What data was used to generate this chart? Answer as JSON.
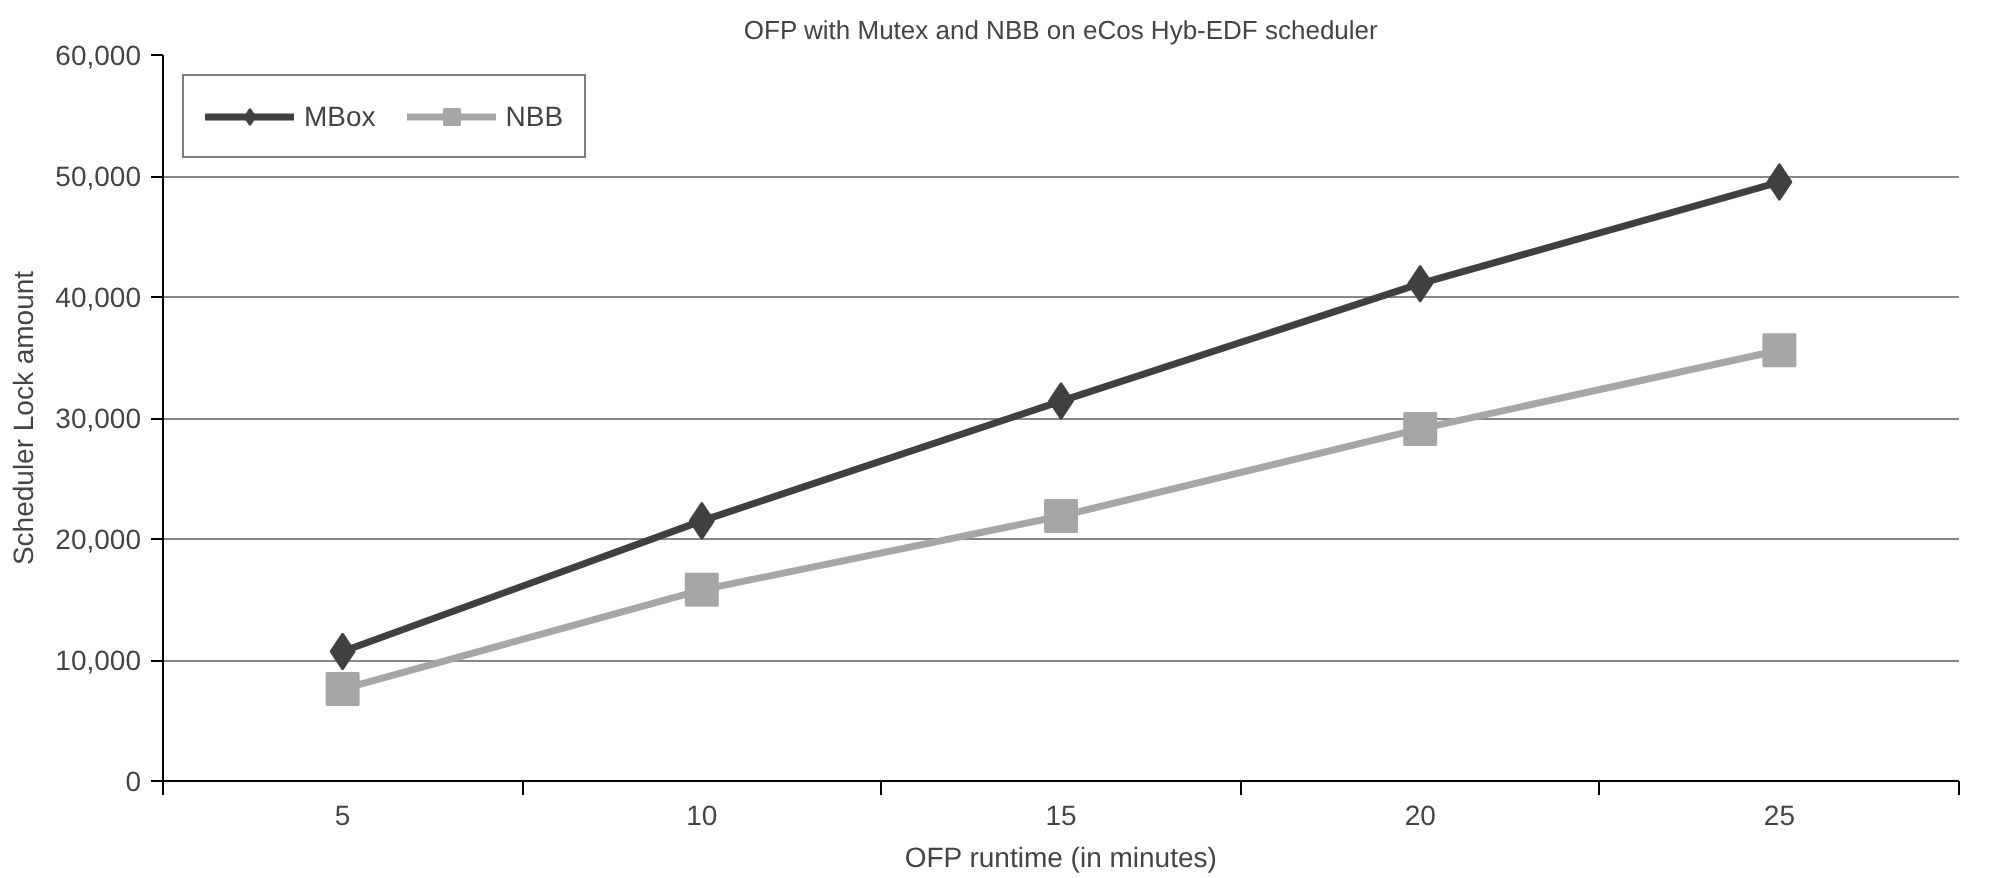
{
  "chart_data": {
    "type": "line",
    "title": "OFP with Mutex and NBB on eCos Hyb-EDF scheduler",
    "xlabel": "OFP runtime (in minutes)",
    "ylabel": "Scheduler Lock amount",
    "categories": [
      "5",
      "10",
      "15",
      "20",
      "25"
    ],
    "series": [
      {
        "name": "MBox",
        "color": "#404040",
        "marker": "diamond",
        "values": [
          10700,
          21500,
          31400,
          41100,
          49500
        ]
      },
      {
        "name": "NBB",
        "color": "#a6a6a6",
        "marker": "square",
        "values": [
          7600,
          15800,
          21900,
          29100,
          35600
        ]
      }
    ],
    "ylim": [
      0,
      60000
    ],
    "yticks": [
      {
        "value": 0,
        "label": "0"
      },
      {
        "value": 10000,
        "label": "10,000"
      },
      {
        "value": 20000,
        "label": "20,000"
      },
      {
        "value": 30000,
        "label": "30,000"
      },
      {
        "value": 40000,
        "label": "40,000"
      },
      {
        "value": 50000,
        "label": "50,000"
      },
      {
        "value": 60000,
        "label": "60,000"
      }
    ],
    "grid": "y",
    "legend": "top left",
    "line_style": "solid"
  }
}
